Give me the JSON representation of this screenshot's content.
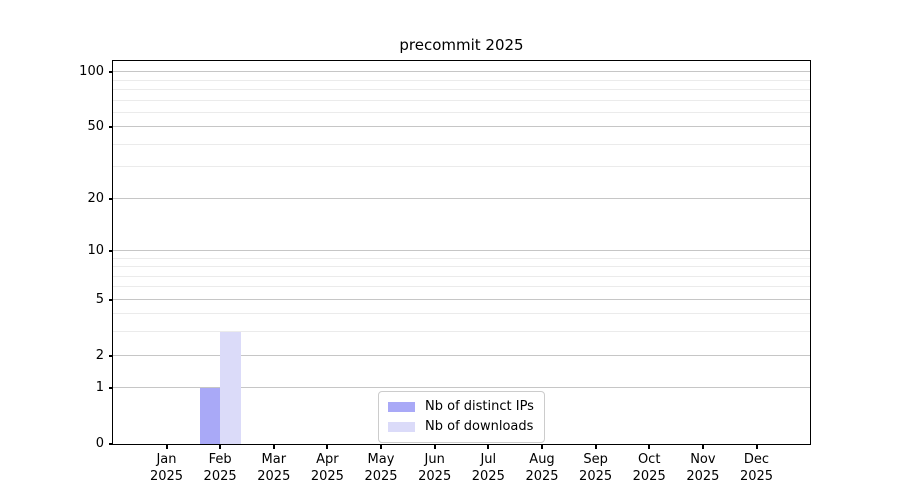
{
  "title": "precommit 2025",
  "colors": {
    "bar_distinct_ips": "#a9a9f7",
    "bar_downloads": "#dbdbf9",
    "grid_major": "#c6c6c6",
    "grid_minor": "#ebebeb",
    "spine": "#000000",
    "text": "#000000",
    "legend_border": "#cccccc",
    "background": "#ffffff"
  },
  "chart_data": {
    "type": "bar",
    "title": "precommit 2025",
    "xlabel": "",
    "ylabel": "",
    "categories": [
      {
        "month": "Jan",
        "year": "2025"
      },
      {
        "month": "Feb",
        "year": "2025"
      },
      {
        "month": "Mar",
        "year": "2025"
      },
      {
        "month": "Apr",
        "year": "2025"
      },
      {
        "month": "May",
        "year": "2025"
      },
      {
        "month": "Jun",
        "year": "2025"
      },
      {
        "month": "Jul",
        "year": "2025"
      },
      {
        "month": "Aug",
        "year": "2025"
      },
      {
        "month": "Sep",
        "year": "2025"
      },
      {
        "month": "Oct",
        "year": "2025"
      },
      {
        "month": "Nov",
        "year": "2025"
      },
      {
        "month": "Dec",
        "year": "2025"
      }
    ],
    "series": [
      {
        "name": "Nb of distinct IPs",
        "color": "#a9a9f7",
        "values": [
          0,
          1,
          0,
          0,
          0,
          0,
          0,
          0,
          0,
          0,
          0,
          0
        ]
      },
      {
        "name": "Nb of downloads",
        "color": "#dbdbf9",
        "values": [
          0,
          3,
          0,
          0,
          0,
          0,
          0,
          0,
          0,
          0,
          0,
          0
        ]
      }
    ],
    "yscale": "log1p",
    "ylim": [
      0,
      115
    ],
    "y_major_ticks": [
      0,
      1,
      2,
      5,
      10,
      20,
      50,
      100
    ],
    "y_minor_ticks": [
      3,
      4,
      6,
      7,
      8,
      9,
      30,
      40,
      60,
      70,
      80,
      90
    ],
    "grid": "horizontal, major and minor",
    "legend_position": "lower center, inside axes"
  }
}
